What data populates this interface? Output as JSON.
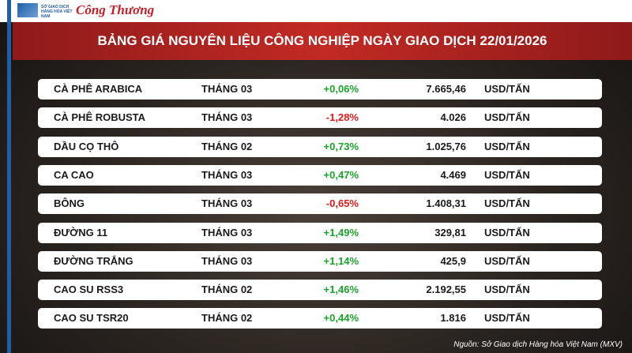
{
  "header": {
    "logo_text": "SỞ GIAO DỊCH HÀNG HÓA VIỆT NAM",
    "brand": "Công Thương"
  },
  "title": "BẢNG GIÁ NGUYÊN LIỆU CÔNG NGHIỆP NGÀY GIAO DỊCH 22/01/2026",
  "table": {
    "rows": [
      [
        "CÀ PHÊ ARABICA",
        "THÁNG 03",
        "+0,06%",
        "7.665,46",
        "USD/TẤN"
      ],
      [
        "CÀ PHÊ ROBUSTA",
        "THÁNG 03",
        "-1,28%",
        "4.026",
        "USD/TẤN"
      ],
      [
        "DẦU CỌ THÔ",
        "THÁNG 02",
        "+0,73%",
        "1.025,76",
        "USD/TẤN"
      ],
      [
        "CA CAO",
        "THÁNG 03",
        "+0,47%",
        "4.469",
        "USD/TẤN"
      ],
      [
        "BÔNG",
        "THÁNG 03",
        "-0,65%",
        "1.408,31",
        "USD/TẤN"
      ],
      [
        "ĐƯỜNG 11",
        "THÁNG 03",
        "+1,49%",
        "329,81",
        "USD/TẤN"
      ],
      [
        "ĐƯỜNG TRẮNG",
        "THÁNG 03",
        "+1,14%",
        "425,9",
        "USD/TẤN"
      ],
      [
        "CAO SU RSS3",
        "THÁNG 02",
        "+1,46%",
        "2.192,55",
        "USD/TẤN"
      ],
      [
        "CAO SU TSR20",
        "THÁNG 02",
        "+0,44%",
        "1.816",
        "USD/TẤN"
      ]
    ]
  },
  "source": "Nguồn: Sở Giao dịch Hàng hóa Việt Nam (MXV)"
}
